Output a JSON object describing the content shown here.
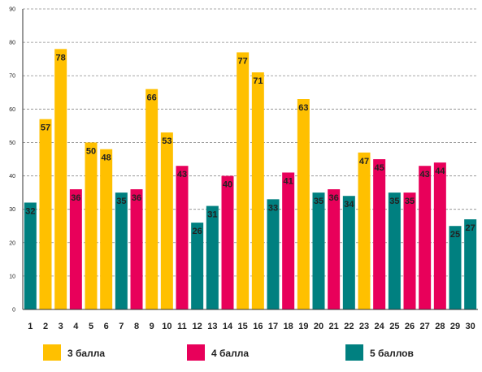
{
  "chart_data": {
    "type": "bar",
    "title": "",
    "xlabel": "",
    "ylabel": "",
    "ylim": [
      0,
      90
    ],
    "y_ticks": [
      "0",
      "10",
      "20",
      "30",
      "40",
      "50",
      "60",
      "70",
      "80",
      "90"
    ],
    "grid": "horizontal dashed",
    "legend_position": "bottom",
    "categories": [
      "1",
      "2",
      "3",
      "4",
      "5",
      "6",
      "7",
      "8",
      "9",
      "10",
      "11",
      "12",
      "13",
      "14",
      "15",
      "16",
      "17",
      "18",
      "19",
      "20",
      "21",
      "22",
      "23",
      "24",
      "25",
      "26",
      "27",
      "28",
      "29",
      "30"
    ],
    "values": [
      32,
      57,
      78,
      36,
      50,
      48,
      35,
      36,
      66,
      53,
      43,
      26,
      31,
      40,
      77,
      71,
      33,
      41,
      63,
      35,
      36,
      34,
      47,
      45,
      35,
      35,
      43,
      44,
      25,
      27
    ],
    "groups": [
      "5 баллов",
      "3 балла",
      "3 балла",
      "4 балла",
      "3 балла",
      "3 балла",
      "5 баллов",
      "4 балла",
      "3 балла",
      "3 балла",
      "4 балла",
      "5 баллов",
      "5 баллов",
      "4 балла",
      "3 балла",
      "3 балла",
      "5 баллов",
      "4 балла",
      "3 балла",
      "5 баллов",
      "4 балла",
      "5 баллов",
      "3 балла",
      "4 балла",
      "5 баллов",
      "4 балла",
      "4 балла",
      "4 балла",
      "5 баллов",
      "5 баллов"
    ],
    "legend": [
      {
        "name": "3 балла",
        "color": "#FFC000"
      },
      {
        "name": "4 балла",
        "color": "#E8005A"
      },
      {
        "name": "5 баллов",
        "color": "#008080"
      }
    ]
  }
}
